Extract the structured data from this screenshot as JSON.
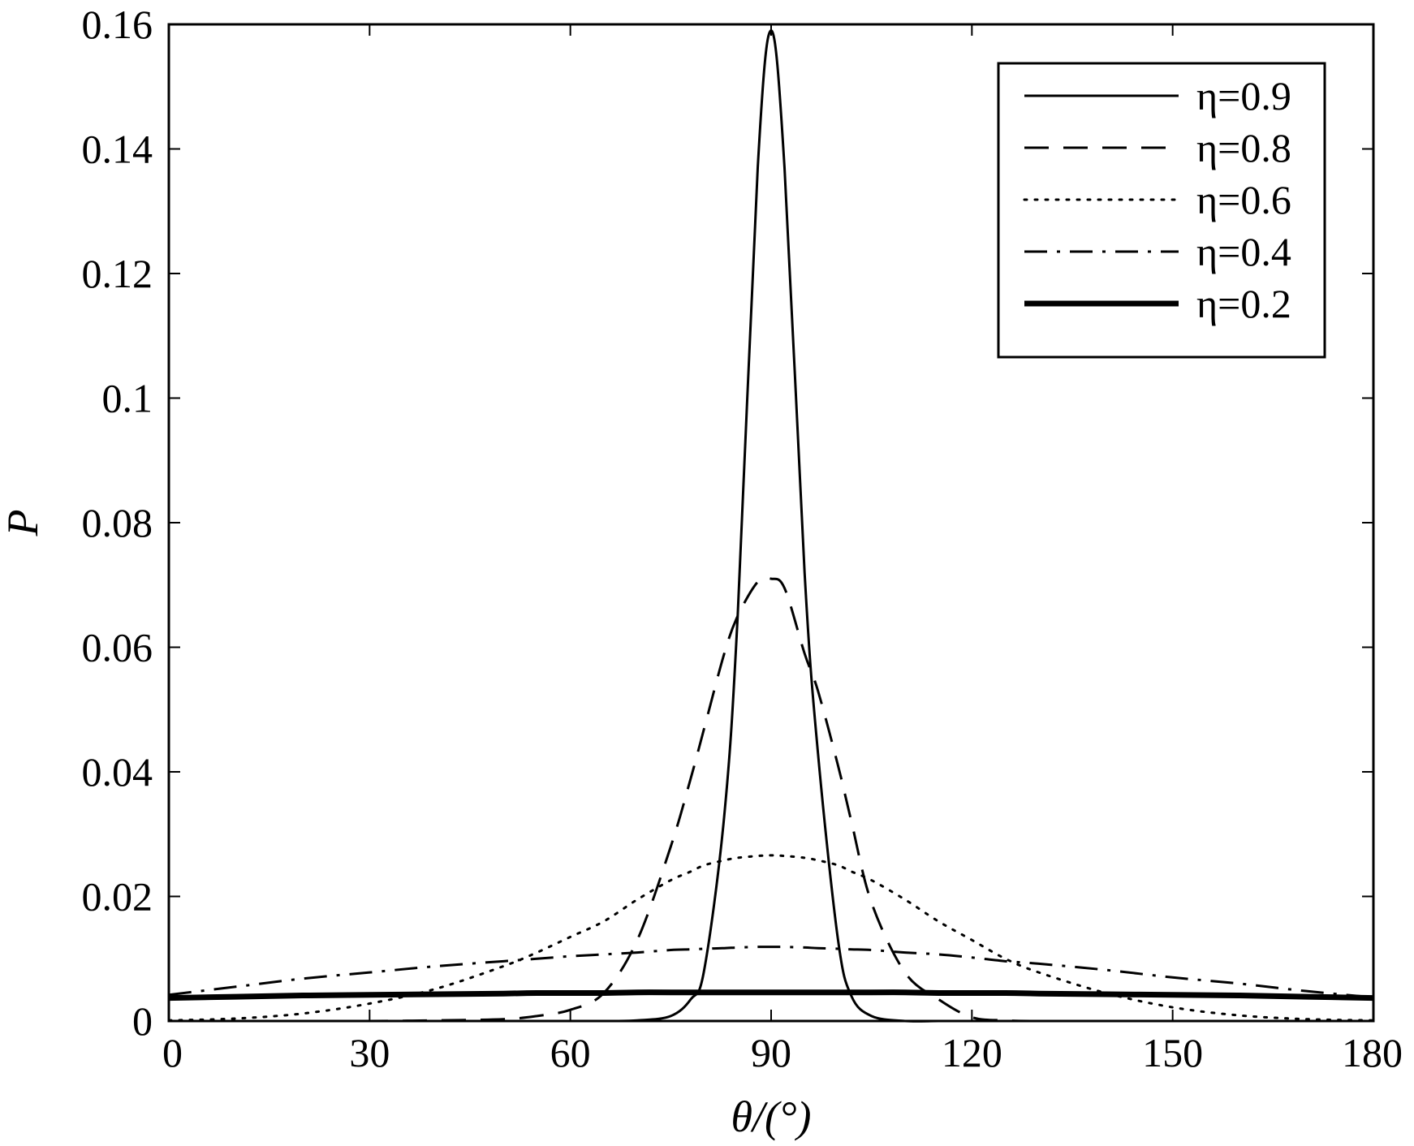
{
  "chart_data": {
    "type": "line",
    "xlabel": "θ/(°)",
    "ylabel": "P",
    "xlim": [
      0,
      180
    ],
    "ylim": [
      0,
      0.16
    ],
    "xticks": [
      "0",
      "30",
      "60",
      "90",
      "120",
      "150",
      "180"
    ],
    "yticks": [
      "0",
      "0.02",
      "0.04",
      "0.06",
      "0.08",
      "0.1",
      "0.12",
      "0.14",
      "0.16"
    ],
    "grid": false,
    "legend_position": "top-right",
    "x": [
      0,
      10,
      20,
      30,
      40,
      50,
      55,
      60,
      65,
      70,
      75,
      78,
      80,
      83,
      85,
      88,
      90,
      92,
      95,
      97,
      100,
      102,
      105,
      110,
      115,
      120,
      125,
      130,
      140,
      150,
      160,
      170,
      180
    ],
    "series": [
      {
        "name": "η=0.9",
        "style": "solid",
        "values": [
          0,
          0,
          0,
          0,
          0,
          0,
          0,
          0,
          0,
          0.0001,
          0.0008,
          0.0035,
          0.0082,
          0.033,
          0.065,
          0.137,
          0.159,
          0.137,
          0.072,
          0.043,
          0.013,
          0.004,
          0.0008,
          0,
          0,
          0,
          0,
          0,
          0,
          0,
          0,
          0,
          0
        ]
      },
      {
        "name": "η=0.8",
        "style": "dashed",
        "values": [
          0,
          0,
          0,
          0,
          0.0001,
          0.0003,
          0.0008,
          0.0018,
          0.0045,
          0.013,
          0.028,
          0.039,
          0.047,
          0.059,
          0.065,
          0.0705,
          0.071,
          0.0695,
          0.059,
          0.053,
          0.041,
          0.032,
          0.019,
          0.0078,
          0.0035,
          0.0006,
          0.0001,
          0,
          0,
          0,
          0,
          0,
          0
        ]
      },
      {
        "name": "η=0.6",
        "style": "dotted",
        "values": [
          0.0001,
          0.0004,
          0.0012,
          0.0028,
          0.0052,
          0.0088,
          0.011,
          0.0135,
          0.016,
          0.0195,
          0.0226,
          0.024,
          0.025,
          0.0258,
          0.0262,
          0.0265,
          0.0266,
          0.0265,
          0.0262,
          0.0258,
          0.025,
          0.024,
          0.0226,
          0.0195,
          0.016,
          0.013,
          0.01,
          0.0078,
          0.0045,
          0.0022,
          0.0009,
          0.0003,
          0.0001
        ]
      },
      {
        "name": "η=0.4",
        "style": "dashdot",
        "values": [
          0.0042,
          0.0055,
          0.0068,
          0.0078,
          0.0088,
          0.0096,
          0.01,
          0.0104,
          0.0107,
          0.011,
          0.0114,
          0.0115,
          0.0116,
          0.0117,
          0.0118,
          0.0119,
          0.0119,
          0.0119,
          0.0118,
          0.0117,
          0.0116,
          0.0115,
          0.0114,
          0.011,
          0.0107,
          0.0102,
          0.0096,
          0.0092,
          0.0082,
          0.007,
          0.006,
          0.0048,
          0.0038
        ]
      },
      {
        "name": "η=0.2",
        "style": "solid-thick",
        "values": [
          0.0037,
          0.0039,
          0.0041,
          0.0042,
          0.0043,
          0.0044,
          0.0045,
          0.0045,
          0.0045,
          0.0046,
          0.0046,
          0.0046,
          0.0046,
          0.0046,
          0.0046,
          0.0046,
          0.0046,
          0.0046,
          0.0046,
          0.0046,
          0.0046,
          0.0046,
          0.0046,
          0.0046,
          0.0045,
          0.0045,
          0.0045,
          0.0044,
          0.0043,
          0.0042,
          0.0041,
          0.0039,
          0.0037
        ]
      }
    ]
  }
}
